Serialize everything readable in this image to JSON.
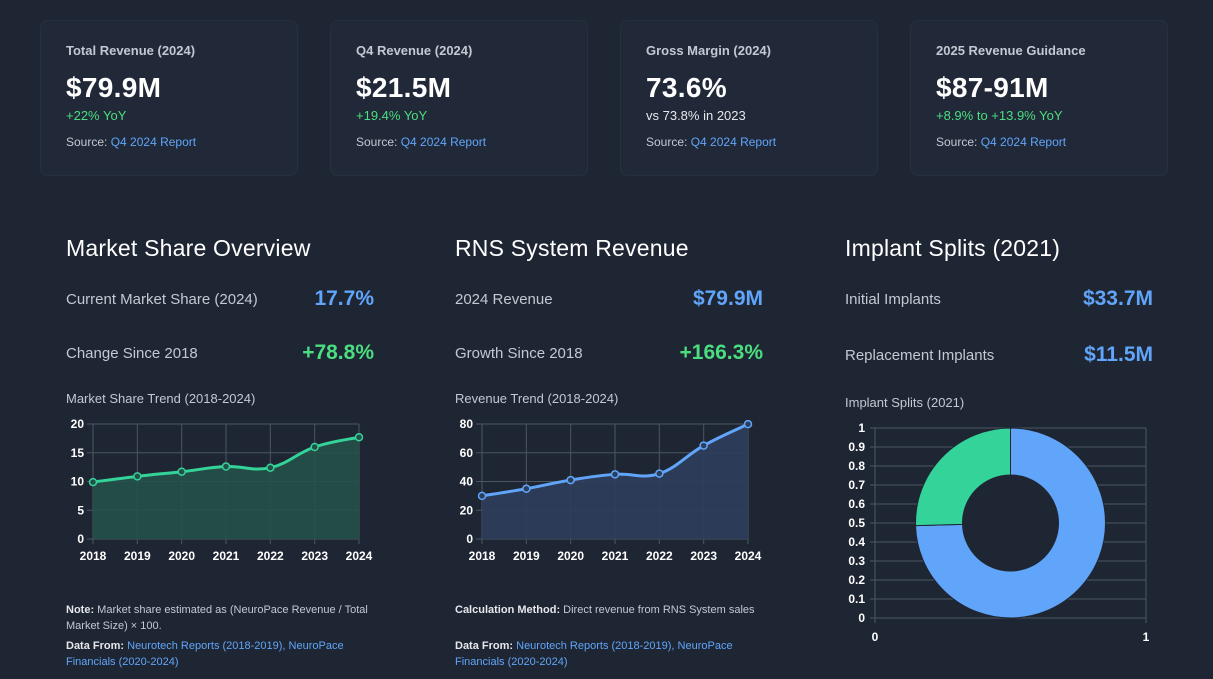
{
  "kpis": [
    {
      "label": "Total Revenue (2024)",
      "value": "$79.9M",
      "sub": "+22% YoY",
      "sub_tone": "green",
      "source_prefix": "Source:",
      "source_link": "Q4 2024 Report"
    },
    {
      "label": "Q4 Revenue (2024)",
      "value": "$21.5M",
      "sub": "+19.4% YoY",
      "sub_tone": "green",
      "source_prefix": "Source:",
      "source_link": "Q4 2024 Report"
    },
    {
      "label": "Gross Margin (2024)",
      "value": "73.6%",
      "sub": "vs 73.8% in 2023",
      "sub_tone": "neutral",
      "source_prefix": "Source:",
      "source_link": "Q4 2024 Report"
    },
    {
      "label": "2025 Revenue Guidance",
      "value": "$87-91M",
      "sub": "+8.9% to +13.9% YoY",
      "sub_tone": "green",
      "source_prefix": "Source:",
      "source_link": "Q4 2024 Report"
    }
  ],
  "market_share": {
    "title": "Market Share Overview",
    "metric1_label": "Current Market Share (2024)",
    "metric1_value": "17.7%",
    "metric2_label": "Change Since 2018",
    "metric2_value": "+78.8%",
    "chart_caption": "Market Share Trend (2018-2024)",
    "note_label": "Note:",
    "note_text": "Market share estimated as (NeuroPace Revenue / Total Market Size) × 100.",
    "data_from_label": "Data From:",
    "data_from_link": "Neurotech Reports (2018-2019), NeuroPace Financials (2020-2024)"
  },
  "rns_revenue": {
    "title": "RNS System Revenue",
    "metric1_label": "2024 Revenue",
    "metric1_value": "$79.9M",
    "metric2_label": "Growth Since 2018",
    "metric2_value": "+166.3%",
    "chart_caption": "Revenue Trend (2018-2024)",
    "note_label": "Calculation Method:",
    "note_text": "Direct revenue from RNS System sales",
    "data_from_label": "Data From:",
    "data_from_link": "Neurotech Reports (2018-2019), NeuroPace Financials (2020-2024)"
  },
  "implant_splits": {
    "title": "Implant Splits (2021)",
    "metric1_label": "Initial Implants",
    "metric1_value": "$33.7M",
    "metric2_label": "Replacement Implants",
    "metric2_value": "$11.5M",
    "chart_caption": "Implant Splits (2021)"
  },
  "chart_data": [
    {
      "id": "market_share_trend",
      "type": "area",
      "title": "Market Share Trend (2018-2024)",
      "x": [
        "2018",
        "2019",
        "2020",
        "2021",
        "2022",
        "2023",
        "2024"
      ],
      "series": [
        {
          "name": "Market Share",
          "values": [
            9.9,
            10.9,
            11.7,
            12.6,
            12.4,
            16.0,
            17.7
          ]
        }
      ],
      "ylim": [
        0,
        20
      ],
      "yticks": [
        0,
        5,
        10,
        15,
        20
      ],
      "color": "#34d399",
      "fill": "#235149"
    },
    {
      "id": "revenue_trend",
      "type": "area",
      "title": "Revenue Trend (2018-2024)",
      "x": [
        "2018",
        "2019",
        "2020",
        "2021",
        "2022",
        "2023",
        "2024"
      ],
      "series": [
        {
          "name": "Revenue",
          "values": [
            30,
            35,
            41,
            45,
            45.5,
            65,
            79.9
          ]
        }
      ],
      "ylim": [
        0,
        80
      ],
      "yticks": [
        0,
        20,
        40,
        60,
        80
      ],
      "color": "#60a5fa",
      "fill": "#2d3e5b"
    },
    {
      "id": "implant_splits",
      "type": "pie",
      "title": "Implant Splits (2021)",
      "labels": [
        "Initial Implants",
        "Replacement Implants"
      ],
      "values": [
        33.7,
        11.5
      ],
      "colors": [
        "#60a5fa",
        "#34d399"
      ],
      "yticks": [
        "0",
        "0.1",
        "0.2",
        "0.3",
        "0.4",
        "0.5",
        "0.6",
        "0.7",
        "0.8",
        "0.9",
        "1"
      ],
      "xticks": [
        "0",
        "1"
      ]
    }
  ]
}
